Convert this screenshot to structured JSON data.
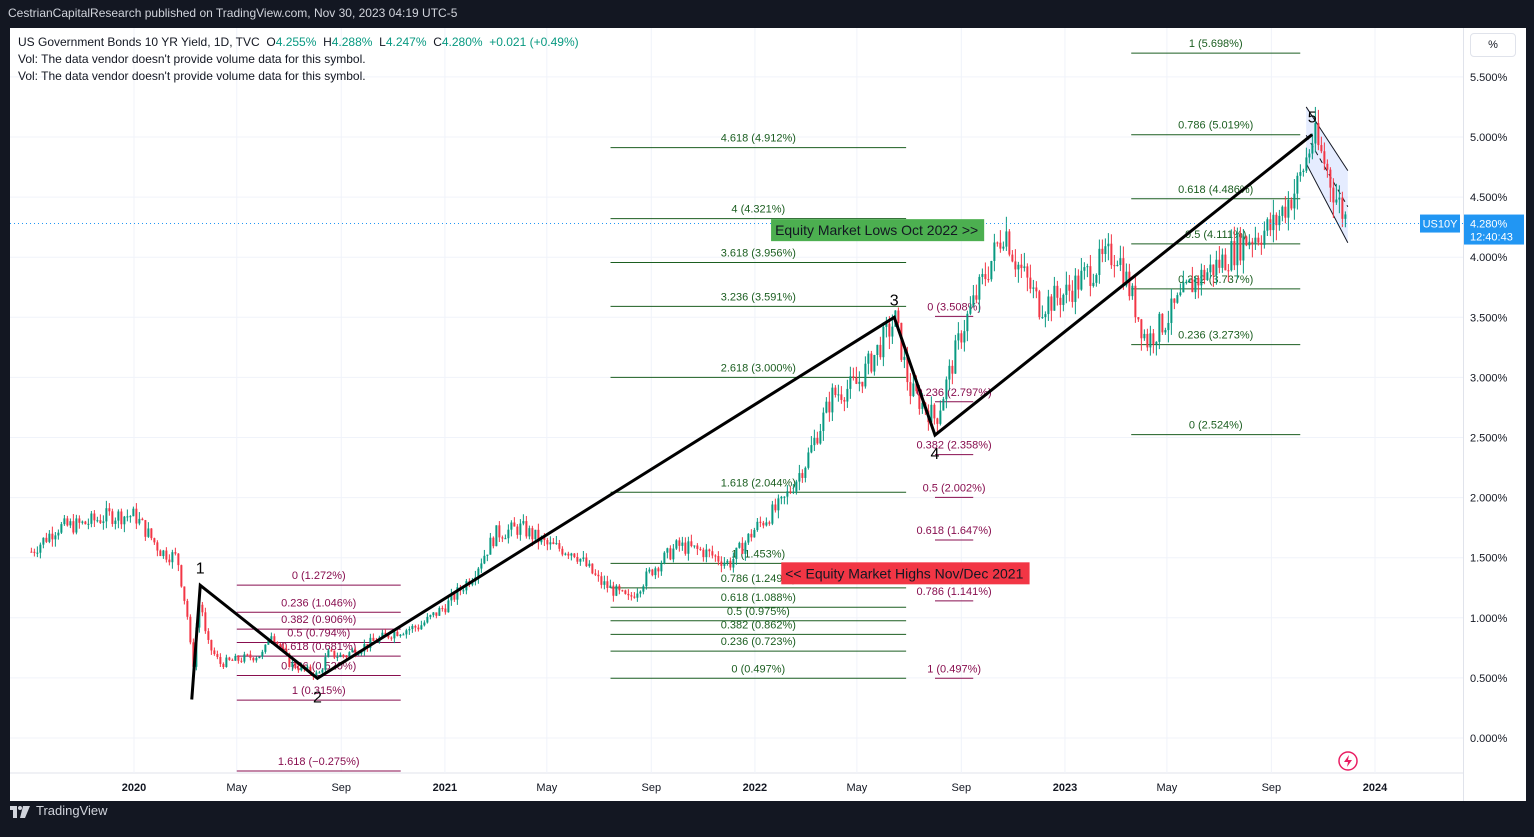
{
  "header": {
    "published_by": "CestrianCapitalResearch published on TradingView.com, Nov 30, 2023 04:19 UTC-5"
  },
  "legend": {
    "symbol_line": "US Government Bonds 10 YR Yield, 1D, TVC",
    "o_label": "O",
    "o_value": "4.255%",
    "h_label": "H",
    "h_value": "4.288%",
    "l_label": "L",
    "l_value": "4.247%",
    "c_label": "C",
    "c_value": "4.280%",
    "change": "+0.021 (+0.49%)",
    "vol_note_1": "Vol: The data vendor doesn't provide volume data for this symbol.",
    "vol_note_2": "Vol: The data vendor doesn't provide volume data for this symbol."
  },
  "price_scale": {
    "mode_button": "%",
    "ticker_tag": "US10Y",
    "last_price": "4.280%",
    "countdown": "12:40:43"
  },
  "footer": {
    "brand": "TradingView"
  },
  "chart_data": {
    "type": "line",
    "title": "US Government Bonds 10 YR Yield, 1D, TVC",
    "ylim": [
      -0.3,
      5.9
    ],
    "y_unit": "%",
    "x_ticks": [
      {
        "date": "2020-01-01",
        "label": "2020"
      },
      {
        "date": "2020-05-01",
        "label": "May"
      },
      {
        "date": "2020-09-01",
        "label": "Sep"
      },
      {
        "date": "2021-01-01",
        "label": "2021"
      },
      {
        "date": "2021-05-01",
        "label": "May"
      },
      {
        "date": "2021-09-01",
        "label": "Sep"
      },
      {
        "date": "2022-01-01",
        "label": "2022"
      },
      {
        "date": "2022-05-01",
        "label": "May"
      },
      {
        "date": "2022-09-01",
        "label": "Sep"
      },
      {
        "date": "2023-01-01",
        "label": "2023"
      },
      {
        "date": "2023-05-01",
        "label": "May"
      },
      {
        "date": "2023-09-01",
        "label": "Sep"
      },
      {
        "date": "2024-01-01",
        "label": "2024"
      }
    ],
    "y_ticks": [
      "5.500%",
      "5.000%",
      "4.500%",
      "4.000%",
      "3.500%",
      "3.000%",
      "2.500%",
      "2.000%",
      "1.500%",
      "1.000%",
      "0.500%",
      "0.000%"
    ],
    "y_tick_values": [
      5.5,
      5.0,
      4.5,
      4.0,
      3.5,
      3.0,
      2.5,
      2.0,
      1.5,
      1.0,
      0.5,
      0.0
    ],
    "last_close": 4.28,
    "series": [
      {
        "dates": [
          "2019-09-01",
          "2019-10-01",
          "2019-11-01",
          "2019-12-01",
          "2020-01-01",
          "2020-02-01",
          "2020-02-20",
          "2020-03-03",
          "2020-03-09",
          "2020-03-12",
          "2020-03-18",
          "2020-03-25",
          "2020-04-10",
          "2020-05-01",
          "2020-06-01",
          "2020-06-08",
          "2020-07-01",
          "2020-08-04",
          "2020-08-15",
          "2020-09-01",
          "2020-10-01",
          "2020-11-01",
          "2020-12-01",
          "2021-01-01",
          "2021-02-01",
          "2021-03-01",
          "2021-03-31",
          "2021-05-01",
          "2021-06-01",
          "2021-07-01",
          "2021-08-04",
          "2021-09-01",
          "2021-10-01",
          "2021-11-01",
          "2021-12-01",
          "2022-01-01",
          "2022-02-01",
          "2022-03-01",
          "2022-04-01",
          "2022-05-01",
          "2022-06-14",
          "2022-07-01",
          "2022-08-01",
          "2022-09-01",
          "2022-10-01",
          "2022-10-21",
          "2022-11-01",
          "2022-12-01",
          "2023-01-01",
          "2023-02-01",
          "2023-03-02",
          "2023-04-06",
          "2023-05-01",
          "2023-06-01",
          "2023-07-01",
          "2023-08-01",
          "2023-09-01",
          "2023-10-01",
          "2023-10-19",
          "2023-11-01",
          "2023-11-15",
          "2023-11-29"
        ],
        "values": [
          1.55,
          1.75,
          1.78,
          1.85,
          1.85,
          1.55,
          1.5,
          1.0,
          0.55,
          0.85,
          1.18,
          0.8,
          0.62,
          0.65,
          0.7,
          0.9,
          0.62,
          0.52,
          0.7,
          0.68,
          0.78,
          0.88,
          0.93,
          1.1,
          1.35,
          1.7,
          1.75,
          1.6,
          1.55,
          1.3,
          1.15,
          1.4,
          1.6,
          1.55,
          1.45,
          1.75,
          1.95,
          2.3,
          2.85,
          2.95,
          3.48,
          2.9,
          2.65,
          3.4,
          3.9,
          4.25,
          4.0,
          3.6,
          3.7,
          3.9,
          4.05,
          3.3,
          3.5,
          3.8,
          3.95,
          4.15,
          4.25,
          4.6,
          5.0,
          4.8,
          4.5,
          4.28
        ]
      }
    ],
    "waves": [
      {
        "label": "1",
        "date": "2020-03-19",
        "value": 1.27
      },
      {
        "label": "2",
        "date": "2020-08-04",
        "value": 0.497
      },
      {
        "label": "3",
        "date": "2022-06-14",
        "value": 3.5
      },
      {
        "label": "4",
        "date": "2022-08-01",
        "value": 2.52
      },
      {
        "label": "5",
        "date": "2023-10-19",
        "value": 5.02
      }
    ],
    "wave_start": {
      "date": "2020-03-09",
      "value": 0.32
    },
    "fib_sets": [
      {
        "color": "#880e4f",
        "x_start": "2020-05-01",
        "x_end": "2020-11-10",
        "levels": [
          {
            "label": "0 (1.272%)",
            "value": 1.272
          },
          {
            "label": "0.236 (1.046%)",
            "value": 1.046
          },
          {
            "label": "0.382 (0.906%)",
            "value": 0.906
          },
          {
            "label": "0.5 (0.794%)",
            "value": 0.794
          },
          {
            "label": "0.618 (0.681%)",
            "value": 0.681
          },
          {
            "label": "0.786 (0.520%)",
            "value": 0.52
          },
          {
            "label": "1 (0.315%)",
            "value": 0.315
          },
          {
            "label": "1.618 (−0.275%)",
            "value": -0.275
          }
        ]
      },
      {
        "color": "#1b5e20",
        "x_start": "2021-07-15",
        "x_end": "2022-06-28",
        "levels": [
          {
            "label": "4.618 (4.912%)",
            "value": 4.912
          },
          {
            "label": "4 (4.321%)",
            "value": 4.321
          },
          {
            "label": "3.618 (3.956%)",
            "value": 3.956
          },
          {
            "label": "3.236 (3.591%)",
            "value": 3.591
          },
          {
            "label": "2.618 (3.000%)",
            "value": 3.0
          },
          {
            "label": "1.618 (2.044%)",
            "value": 2.044
          },
          {
            "label": "1 (1.453%)",
            "value": 1.453
          },
          {
            "label": "0.786 (1.249%)",
            "value": 1.249
          },
          {
            "label": "0.618 (1.088%)",
            "value": 1.088
          },
          {
            "label": "0.5 (0.975%)",
            "value": 0.975
          },
          {
            "label": "0.382 (0.862%)",
            "value": 0.862
          },
          {
            "label": "0.236 (0.723%)",
            "value": 0.723
          },
          {
            "label": "0 (0.497%)",
            "value": 0.497
          }
        ]
      },
      {
        "color": "#880e4f",
        "x_start": "2022-08-01",
        "x_end": "2022-09-15",
        "levels": [
          {
            "label": "0 (3.508%)",
            "value": 3.508
          },
          {
            "label": "0.236 (2.797%)",
            "value": 2.797
          },
          {
            "label": "0.382 (2.358%)",
            "value": 2.358
          },
          {
            "label": "0.5 (2.002%)",
            "value": 2.002
          },
          {
            "label": "0.618 (1.647%)",
            "value": 1.647
          },
          {
            "label": "0.786 (1.141%)",
            "value": 1.141
          },
          {
            "label": "1 (0.497%)",
            "value": 0.497
          }
        ]
      },
      {
        "color": "#1b5e20",
        "x_start": "2023-03-20",
        "x_end": "2023-10-05",
        "levels": [
          {
            "label": "1 (5.698%)",
            "value": 5.698
          },
          {
            "label": "0.786 (5.019%)",
            "value": 5.019
          },
          {
            "label": "0.618 (4.486%)",
            "value": 4.486
          },
          {
            "label": "0.5 (4.111%)",
            "value": 4.111
          },
          {
            "label": "0.382 (3.737%)",
            "value": 3.737
          },
          {
            "label": "0.236 (3.273%)",
            "value": 3.273
          },
          {
            "label": "0 (2.524%)",
            "value": 2.524
          }
        ]
      }
    ],
    "annotations": [
      {
        "text": "Equity Market Lows Oct 2022 >>",
        "color": "#4caf50",
        "date": "2022-01-20",
        "value": 4.225
      },
      {
        "text": "<< Equity Market Highs Nov/Dec 2021",
        "color": "#f23645",
        "date": "2022-02-01",
        "value": 1.37
      }
    ],
    "channel": {
      "upper": [
        {
          "date": "2023-10-12",
          "value": 5.25
        },
        {
          "date": "2023-11-30",
          "value": 4.72
        }
      ],
      "lower": [
        {
          "date": "2023-10-12",
          "value": 4.78
        },
        {
          "date": "2023-11-30",
          "value": 4.12
        }
      ]
    },
    "colors": {
      "candle_up": "#089981",
      "candle_down": "#f23645",
      "wave_line": "#000000",
      "channel_fill": "#2962ff",
      "price_tag": "#2196f3"
    }
  }
}
